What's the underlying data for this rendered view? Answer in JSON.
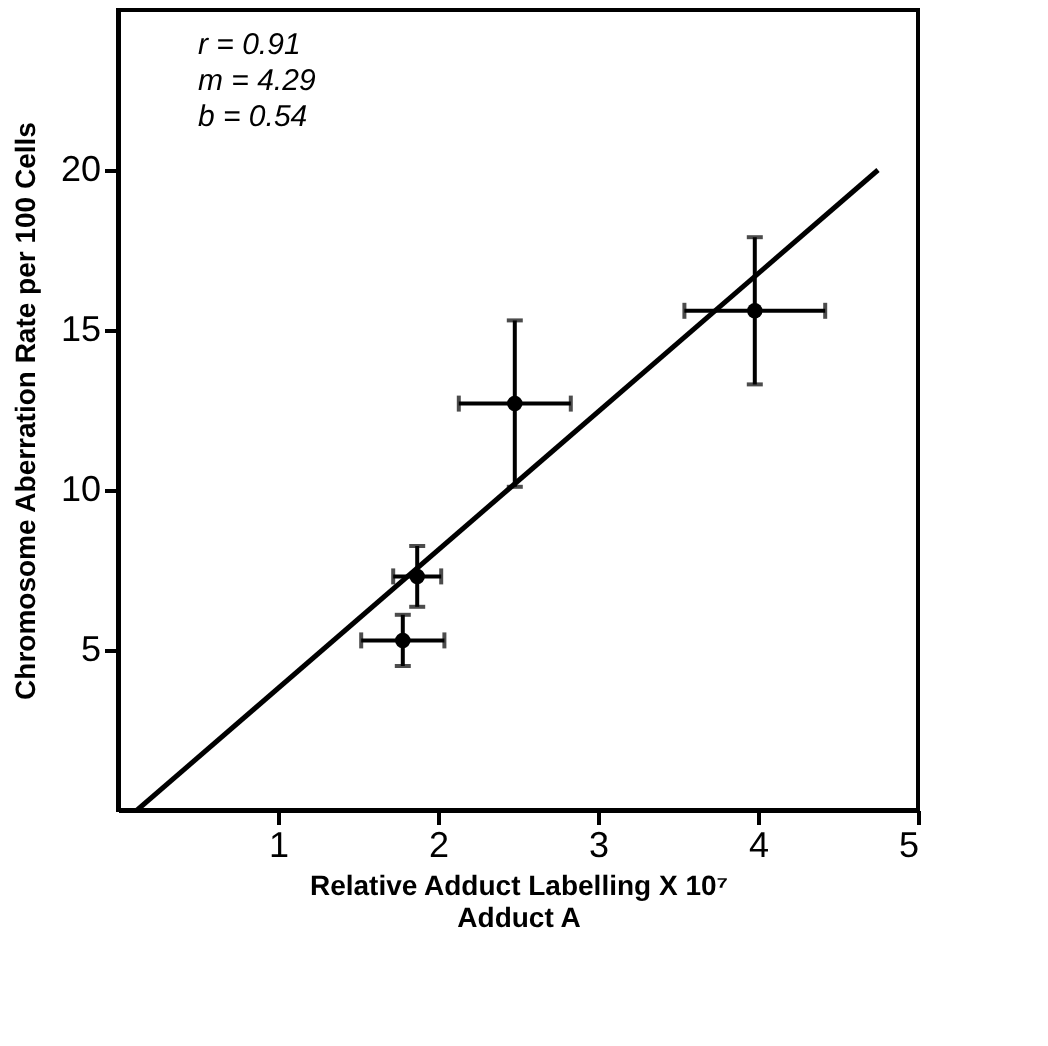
{
  "chart_data": {
    "type": "scatter",
    "xlabel": "Relative Adduct Labelling X 10⁷\nAdduct A",
    "ylabel": "Chromosome Aberration Rate per 100 Cells",
    "annotations": [
      "r = 0.91",
      "m = 4.29",
      "b = 0.54"
    ],
    "xlim": [
      0,
      5
    ],
    "ylim": [
      0,
      25
    ],
    "xticks": [
      1,
      2,
      3,
      4,
      5
    ],
    "yticks": [
      5,
      10,
      15,
      20
    ],
    "grid": false,
    "series": [
      {
        "color": "#000000",
        "marker": "circle",
        "x": [
          1.78,
          1.87,
          2.48,
          3.98
        ],
        "values": [
          5.3,
          7.3,
          12.7,
          15.6
        ],
        "errors": [
          0.8,
          0.95,
          2.6,
          2.3
        ],
        "xerrors": [
          0.26,
          0.15,
          0.35,
          0.44
        ]
      },
      {
        "type": "line",
        "color": "#000000",
        "x": [
          0.12,
          4.75
        ],
        "values": [
          0,
          20
        ],
        "line_style": "solid"
      }
    ]
  }
}
